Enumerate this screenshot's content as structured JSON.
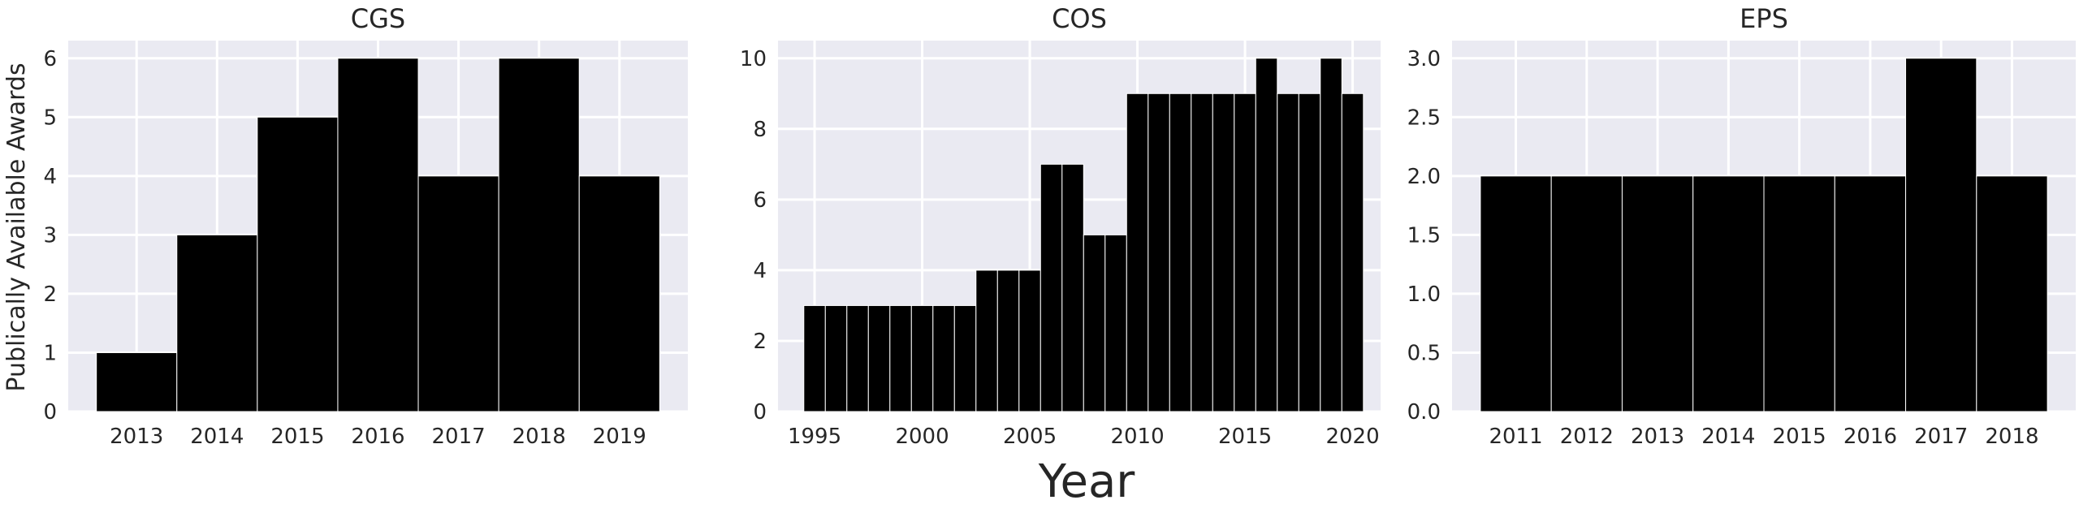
{
  "figure": {
    "shared_xlabel": "Year",
    "shared_ylabel": "Publically Available Awards"
  },
  "chart_data": [
    {
      "type": "bar",
      "title": "CGS",
      "ylabel": "Publically Available Awards",
      "xlabel": "",
      "ylim": [
        0,
        6.3
      ],
      "yticks": [
        0,
        1,
        2,
        3,
        4,
        5,
        6
      ],
      "ytick_labels": [
        "0",
        "1",
        "2",
        "3",
        "4",
        "5",
        "6"
      ],
      "xlim": [
        2012.15,
        2019.85
      ],
      "xticks": [
        2013,
        2014,
        2015,
        2016,
        2017,
        2018,
        2019
      ],
      "xtick_labels": [
        "2013",
        "2014",
        "2015",
        "2016",
        "2017",
        "2018",
        "2019"
      ],
      "bar_width": 1,
      "x": [
        2013,
        2014,
        2015,
        2016,
        2017,
        2018,
        2019
      ],
      "values": [
        1,
        3,
        5,
        6,
        4,
        6,
        4
      ],
      "grid": true
    },
    {
      "type": "bar",
      "title": "COS",
      "ylabel": "",
      "xlabel": "",
      "ylim": [
        0,
        10.5
      ],
      "yticks": [
        0,
        2,
        4,
        6,
        8,
        10
      ],
      "ytick_labels": [
        "0",
        "2",
        "4",
        "6",
        "8",
        "10"
      ],
      "xlim": [
        1993.3,
        2021.3
      ],
      "xticks": [
        1995,
        2000,
        2005,
        2010,
        2015,
        2020
      ],
      "xtick_labels": [
        "1995",
        "2000",
        "2005",
        "2010",
        "2015",
        "2020"
      ],
      "bar_width": 1,
      "x": [
        1995,
        1996,
        1997,
        1998,
        1999,
        2000,
        2001,
        2002,
        2003,
        2004,
        2005,
        2006,
        2007,
        2008,
        2009,
        2010,
        2011,
        2012,
        2013,
        2014,
        2015,
        2016,
        2017,
        2018,
        2019,
        2020
      ],
      "values": [
        3,
        3,
        3,
        3,
        3,
        3,
        3,
        3,
        4,
        4,
        4,
        7,
        7,
        5,
        5,
        9,
        9,
        9,
        9,
        9,
        9,
        10,
        9,
        9,
        10,
        9
      ],
      "grid": true
    },
    {
      "type": "bar",
      "title": "EPS",
      "ylabel": "",
      "xlabel": "",
      "ylim": [
        0,
        3.15
      ],
      "yticks": [
        0,
        0.5,
        1,
        1.5,
        2,
        2.5,
        3
      ],
      "ytick_labels": [
        "0.0",
        "0.5",
        "1.0",
        "1.5",
        "2.0",
        "2.5",
        "3.0"
      ],
      "xlim": [
        2010.1,
        2018.9
      ],
      "xticks": [
        2011,
        2012,
        2013,
        2014,
        2015,
        2016,
        2017,
        2018
      ],
      "xtick_labels": [
        "2011",
        "2012",
        "2013",
        "2014",
        "2015",
        "2016",
        "2017",
        "2018"
      ],
      "bar_width": 1,
      "x": [
        2011,
        2012,
        2013,
        2014,
        2015,
        2016,
        2017,
        2018
      ],
      "values": [
        2,
        2,
        2,
        2,
        2,
        2,
        3,
        2
      ],
      "grid": true
    }
  ]
}
